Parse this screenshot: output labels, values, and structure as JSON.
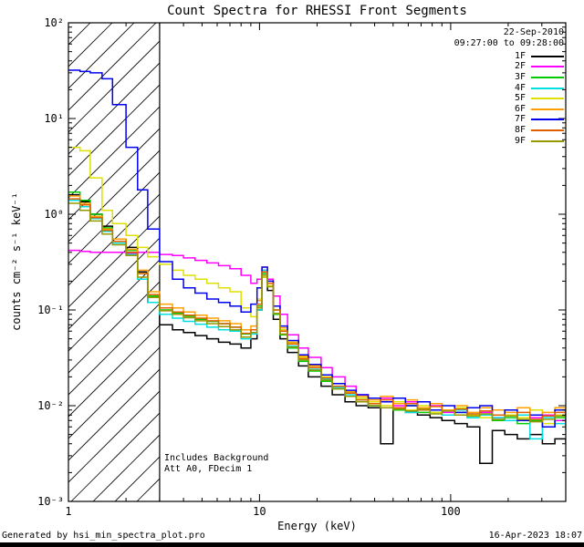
{
  "header": {
    "date": "22-Sep-2010",
    "time_range": "09:27:00 to 09:28:00"
  },
  "annotations": {
    "line1": "Includes Background",
    "line2": "Att A0, FDecim 1"
  },
  "footer": {
    "left": "Generated by hsi_min_spectra_plot.pro",
    "right": "16-Apr-2023 18:07"
  },
  "chart_data": {
    "type": "line",
    "title": "Count Spectra for RHESSI Front Segments",
    "xlabel": "Energy (keV)",
    "ylabel": "counts cm⁻² s⁻¹ keV⁻¹",
    "xscale": "log",
    "yscale": "log",
    "xlim": [
      1,
      400
    ],
    "ylim": [
      0.001,
      100
    ],
    "grid": false,
    "legend_position": "top-right",
    "hatched_region_kev": [
      1,
      3
    ],
    "x_tick_values": [
      1,
      10,
      100
    ],
    "x_tick_labels": [
      "1",
      "10",
      "100"
    ],
    "y_tick_values": [
      100,
      10,
      1,
      0.1,
      0.01,
      0.001
    ],
    "y_tick_labels": [
      "10²",
      "10¹",
      "10⁰",
      "10⁻¹",
      "10⁻²",
      "10⁻³"
    ],
    "energies_kev": [
      1.0,
      1.15,
      1.3,
      1.5,
      1.7,
      2.0,
      2.3,
      2.6,
      3.0,
      3.5,
      4.0,
      4.6,
      5.3,
      6.1,
      7.0,
      8.0,
      9.0,
      9.7,
      10.3,
      11.0,
      11.8,
      12.8,
      14,
      16,
      18,
      21,
      24,
      28,
      32,
      37,
      43,
      50,
      58,
      67,
      78,
      90,
      105,
      122,
      142,
      165,
      192,
      223,
      260,
      302,
      351,
      400
    ],
    "series": [
      {
        "name": "1F",
        "color": "#000000",
        "values": [
          1.6,
          1.35,
          1.0,
          0.75,
          0.55,
          0.45,
          0.25,
          0.12,
          0.07,
          0.062,
          0.058,
          0.054,
          0.05,
          0.046,
          0.044,
          0.04,
          0.05,
          0.1,
          0.22,
          0.16,
          0.08,
          0.05,
          0.036,
          0.026,
          0.02,
          0.016,
          0.013,
          0.011,
          0.01,
          0.0095,
          0.004,
          0.009,
          0.0085,
          0.008,
          0.0075,
          0.007,
          0.0065,
          0.006,
          0.0025,
          0.0055,
          0.005,
          0.0045,
          0.005,
          0.004,
          0.0045,
          0.004
        ]
      },
      {
        "name": "2F",
        "color": "#FF00FF",
        "values": [
          0.42,
          0.41,
          0.4,
          0.4,
          0.4,
          0.39,
          0.4,
          0.4,
          0.38,
          0.37,
          0.35,
          0.33,
          0.31,
          0.29,
          0.27,
          0.23,
          0.19,
          0.21,
          0.26,
          0.21,
          0.14,
          0.09,
          0.055,
          0.04,
          0.032,
          0.025,
          0.02,
          0.016,
          0.013,
          0.011,
          0.012,
          0.01,
          0.011,
          0.009,
          0.01,
          0.0085,
          0.009,
          0.008,
          0.0085,
          0.0075,
          0.008,
          0.007,
          0.0075,
          0.008,
          0.007,
          0.0075
        ]
      },
      {
        "name": "3F",
        "color": "#00CC00",
        "values": [
          1.7,
          1.4,
          1.0,
          0.72,
          0.55,
          0.42,
          0.24,
          0.14,
          0.1,
          0.092,
          0.086,
          0.08,
          0.076,
          0.072,
          0.066,
          0.056,
          0.062,
          0.11,
          0.24,
          0.18,
          0.09,
          0.055,
          0.04,
          0.029,
          0.023,
          0.018,
          0.015,
          0.0125,
          0.011,
          0.01,
          0.011,
          0.009,
          0.01,
          0.0085,
          0.009,
          0.008,
          0.0085,
          0.0075,
          0.008,
          0.007,
          0.0075,
          0.0065,
          0.007,
          0.006,
          0.0075,
          0.0055
        ]
      },
      {
        "name": "4F",
        "color": "#00E0E0",
        "values": [
          1.4,
          1.2,
          0.9,
          0.66,
          0.5,
          0.38,
          0.21,
          0.12,
          0.09,
          0.082,
          0.076,
          0.071,
          0.066,
          0.062,
          0.06,
          0.05,
          0.056,
          0.1,
          0.26,
          0.19,
          0.1,
          0.06,
          0.042,
          0.03,
          0.024,
          0.019,
          0.0155,
          0.013,
          0.0115,
          0.01,
          0.0095,
          0.0105,
          0.0085,
          0.0095,
          0.0085,
          0.008,
          0.009,
          0.0075,
          0.008,
          0.0075,
          0.007,
          0.008,
          0.0045,
          0.0075,
          0.0065,
          0.006
        ]
      },
      {
        "name": "5F",
        "color": "#E0E000",
        "values": [
          5.0,
          4.6,
          2.4,
          1.1,
          0.8,
          0.6,
          0.45,
          0.36,
          0.3,
          0.26,
          0.23,
          0.21,
          0.19,
          0.17,
          0.155,
          0.105,
          0.085,
          0.13,
          0.22,
          0.18,
          0.1,
          0.062,
          0.045,
          0.032,
          0.026,
          0.02,
          0.017,
          0.014,
          0.012,
          0.011,
          0.01,
          0.011,
          0.009,
          0.01,
          0.0085,
          0.009,
          0.0095,
          0.008,
          0.0075,
          0.009,
          0.008,
          0.0075,
          0.009,
          0.0065,
          0.008,
          0.007
        ]
      },
      {
        "name": "6F",
        "color": "#FFA000",
        "values": [
          1.55,
          1.3,
          0.95,
          0.7,
          0.55,
          0.43,
          0.26,
          0.155,
          0.115,
          0.105,
          0.095,
          0.088,
          0.082,
          0.077,
          0.072,
          0.062,
          0.068,
          0.125,
          0.28,
          0.2,
          0.11,
          0.065,
          0.046,
          0.033,
          0.026,
          0.021,
          0.017,
          0.014,
          0.0125,
          0.0115,
          0.0125,
          0.0105,
          0.0115,
          0.0095,
          0.0105,
          0.009,
          0.01,
          0.0085,
          0.0095,
          0.009,
          0.0085,
          0.0095,
          0.008,
          0.0085,
          0.0095,
          0.0075
        ]
      },
      {
        "name": "7F",
        "color": "#0000EE",
        "values": [
          32,
          31,
          30,
          26,
          14,
          5,
          1.8,
          0.7,
          0.32,
          0.21,
          0.17,
          0.15,
          0.13,
          0.12,
          0.11,
          0.095,
          0.115,
          0.17,
          0.28,
          0.2,
          0.11,
          0.068,
          0.048,
          0.034,
          0.027,
          0.021,
          0.017,
          0.0145,
          0.013,
          0.012,
          0.011,
          0.012,
          0.01,
          0.011,
          0.009,
          0.01,
          0.0085,
          0.0095,
          0.01,
          0.008,
          0.009,
          0.007,
          0.008,
          0.006,
          0.009,
          0.008
        ]
      },
      {
        "name": "8F",
        "color": "#E06000",
        "values": [
          1.45,
          1.25,
          0.92,
          0.68,
          0.52,
          0.4,
          0.24,
          0.145,
          0.105,
          0.095,
          0.088,
          0.082,
          0.077,
          0.072,
          0.066,
          0.057,
          0.062,
          0.115,
          0.25,
          0.19,
          0.1,
          0.06,
          0.044,
          0.031,
          0.025,
          0.0195,
          0.016,
          0.0135,
          0.0115,
          0.0105,
          0.0115,
          0.0095,
          0.0105,
          0.009,
          0.0098,
          0.0088,
          0.0092,
          0.0082,
          0.0088,
          0.008,
          0.0078,
          0.0085,
          0.0072,
          0.0078,
          0.0085,
          0.0068
        ]
      },
      {
        "name": "9F",
        "color": "#979700",
        "values": [
          1.3,
          1.1,
          0.85,
          0.62,
          0.48,
          0.37,
          0.22,
          0.135,
          0.098,
          0.09,
          0.083,
          0.077,
          0.072,
          0.067,
          0.062,
          0.052,
          0.058,
          0.105,
          0.23,
          0.175,
          0.092,
          0.056,
          0.041,
          0.03,
          0.0235,
          0.0185,
          0.015,
          0.0125,
          0.011,
          0.01,
          0.0095,
          0.0092,
          0.0088,
          0.0092,
          0.0082,
          0.0088,
          0.008,
          0.0078,
          0.0082,
          0.0072,
          0.0078,
          0.0072,
          0.0068,
          0.0072,
          0.0078,
          0.0062
        ]
      }
    ]
  }
}
